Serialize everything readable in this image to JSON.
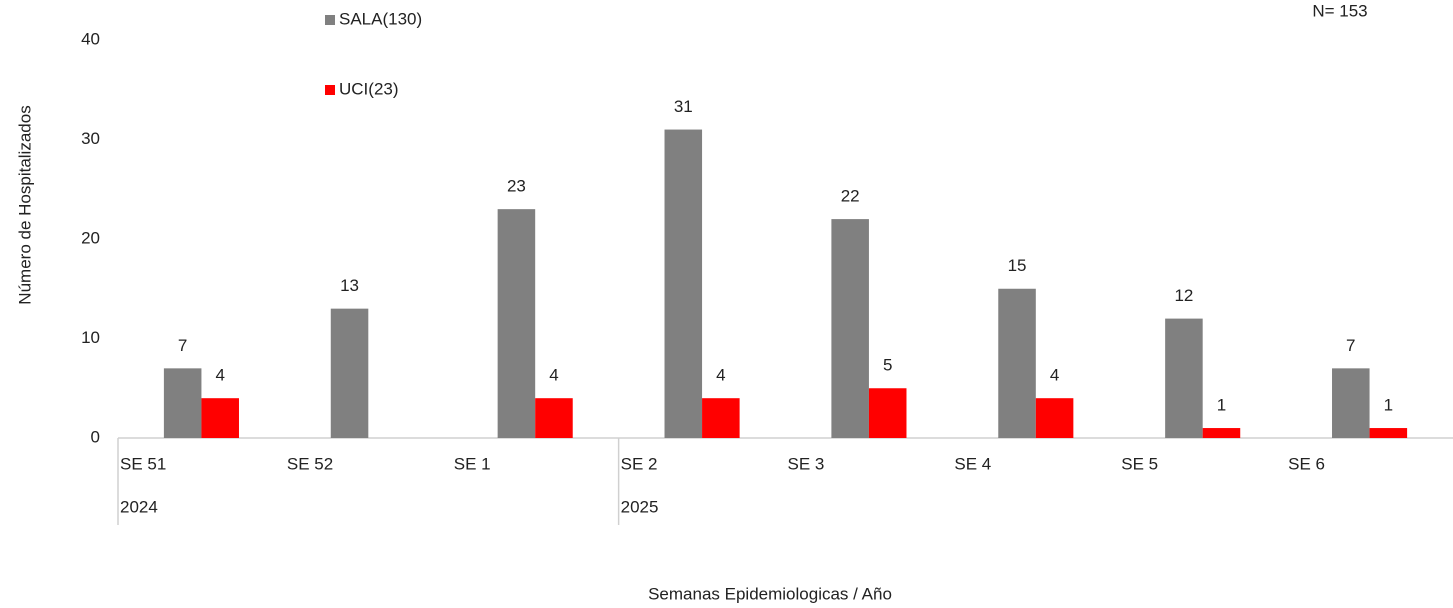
{
  "chart_data": {
    "type": "bar",
    "annotation": "N= 153",
    "ylabel": "Número de Hospitalizados",
    "xlabel": "Semanas Epidemiologicas / Año",
    "categories": [
      "SE 51",
      "SE 52",
      "SE 1",
      "SE 2",
      "SE 3",
      "SE 4",
      "SE 5",
      "SE 6"
    ],
    "x_groups": [
      {
        "name": "2024",
        "span": 3
      },
      {
        "name": "2025",
        "span": 5
      }
    ],
    "series": [
      {
        "name": "SALA(130)",
        "color": "#808080",
        "values": [
          7,
          13,
          23,
          31,
          22,
          15,
          12,
          7
        ]
      },
      {
        "name": "UCI(23)",
        "color": "#ff0000",
        "values": [
          4,
          null,
          4,
          4,
          5,
          4,
          1,
          1
        ]
      }
    ],
    "ylim": [
      0,
      40
    ],
    "yticks": [
      0,
      10,
      20,
      30,
      40
    ],
    "grid": false
  }
}
